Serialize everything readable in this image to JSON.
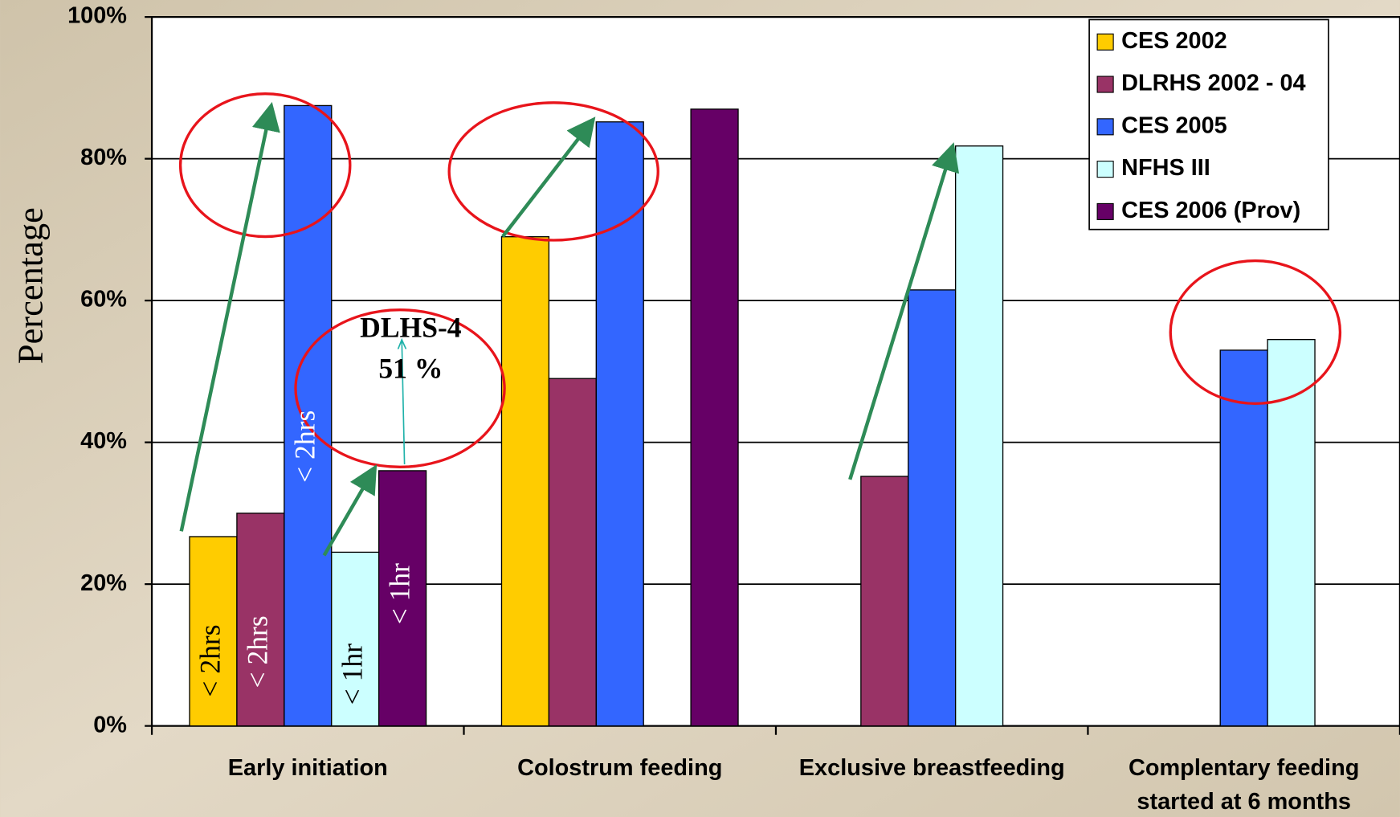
{
  "chart_data": {
    "type": "bar",
    "y_label": "Percentage",
    "categories": [
      "Early initiation",
      "Colostrum feeding",
      "Exclusive breastfeeding",
      "Complentary feeding started at 6 months"
    ],
    "series": [
      {
        "name": "CES 2002",
        "color": "#ffcc00",
        "values": [
          26.7,
          69,
          null,
          null
        ]
      },
      {
        "name": "DLRHS 2002 - 04",
        "color": "#993366",
        "values": [
          30,
          49,
          35.2,
          null
        ]
      },
      {
        "name": "CES 2005",
        "color": "#3366ff",
        "values": [
          87.5,
          85.2,
          61.5,
          53
        ]
      },
      {
        "name": "NFHS III",
        "color": "#ccffff",
        "values": [
          24.5,
          null,
          81.8,
          54.5
        ]
      },
      {
        "name": "CES 2006 (Prov)",
        "color": "#660066",
        "values": [
          36,
          87,
          null,
          null
        ]
      }
    ],
    "ylim": [
      0,
      100
    ],
    "yticks": [
      {
        "value": 0,
        "label": "0%"
      },
      {
        "value": 20,
        "label": "20%"
      },
      {
        "value": 40,
        "label": "40%"
      },
      {
        "value": 60,
        "label": "60%"
      },
      {
        "value": 80,
        "label": "80%"
      },
      {
        "value": 100,
        "label": "100%"
      }
    ],
    "grid": true,
    "legend": "top-right",
    "bar_annotations": [
      "< 2hrs",
      "< 2hrs",
      "< 2hrs",
      "< 1hr",
      "< 1hr"
    ],
    "annotations": [
      "DLHS-4",
      "51 %"
    ]
  }
}
